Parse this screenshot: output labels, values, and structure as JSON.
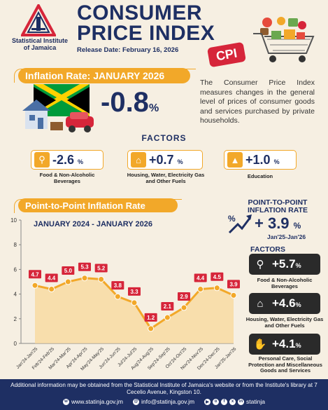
{
  "header": {
    "org_name": "Statistical Institute of Jamaica",
    "title_line1": "CONSUMER",
    "title_line2": "PRICE INDEX",
    "release": "Release Date: February 16, 2026",
    "cpi_tag": "CPI"
  },
  "inflation": {
    "banner": "Inflation Rate: JANUARY 2026",
    "value": "-0.8",
    "unit": "%"
  },
  "description": "The Consumer Price Index measures changes in the general level of prices of consumer goods and services purchased by private households.",
  "factors": {
    "title": "FACTORS",
    "items": [
      {
        "value": "-2.6",
        "unit": "%",
        "label": "Food & Non-Alcoholic Beverages",
        "icon": "grocery-bag-icon"
      },
      {
        "value": "+0.7",
        "unit": "%",
        "label": "Housing, Water, Electricity Gas and Other Fuels",
        "icon": "house-electricity-icon"
      },
      {
        "value": "+1.0",
        "unit": "%",
        "label": "Education",
        "icon": "graduation-cap-icon"
      }
    ]
  },
  "p2p": {
    "banner": "Point-to-Point Inflation Rate",
    "right_title": "POINT-TO-POINT INFLATION RATE",
    "value": "+ 3.9",
    "unit": "%",
    "period": "Jan'25-Jan'26",
    "factors_title": "FACTORS",
    "factors": [
      {
        "value": "+5.7",
        "unit": "%",
        "label": "Food & Non-Alcoholic Beverages",
        "icon": "grocery-bag-icon"
      },
      {
        "value": "+4.6",
        "unit": "%",
        "label": "Housing, Water, Electricity Gas and Other Fuels",
        "icon": "house-electricity-icon"
      },
      {
        "value": "+4.1",
        "unit": "%",
        "label": "Personal Care, Social Protection and Miscellaneous Goods and Services",
        "icon": "hand-care-icon"
      }
    ]
  },
  "chart_data": {
    "type": "area",
    "subtitle": "JANUARY 2024 - JANUARY 2026",
    "categories": [
      "Jan'24-Jan'25",
      "Feb'24-Feb'25",
      "Mar'24-Mar'25",
      "Apr'24-Apr'25",
      "May'24-May'25",
      "Jun'24-Jun'25",
      "Jul'24-Jul'25",
      "Aug'24-Aug'25",
      "Sep'24-Sep'25",
      "Oct'24-Oct'25",
      "Nov'24-Nov'25",
      "Dec'24-Dec'25",
      "Jan'25-Jan'26"
    ],
    "values": [
      4.7,
      4.4,
      5.0,
      5.3,
      5.2,
      3.8,
      3.3,
      1.2,
      2.1,
      2.9,
      4.4,
      4.5,
      3.9
    ],
    "value_labels": [
      "4.7",
      "4.4",
      "5.0",
      "5.3",
      "5.2",
      "3.8",
      "3.3",
      "1.2",
      "2.1",
      "2.9",
      "4.4",
      "4.5",
      "3.9"
    ],
    "yticks": [
      "0",
      "2",
      "4",
      "6",
      "8",
      "10"
    ],
    "ylim": [
      0,
      10
    ],
    "colors": {
      "line": "#f2a829",
      "marker": "#f2a829",
      "label_bg": "#d6253a",
      "fill": "#f8d89a"
    }
  },
  "footer": {
    "note": "Additional information may be obtained from the Statistical Institute of Jamaica's website or from the Institute's library at 7 Cecelio Avenue, Kingston 10.",
    "website": "www.statinja.gov.jm",
    "email": "info@statinja.gov.jm",
    "social": "statinja"
  }
}
